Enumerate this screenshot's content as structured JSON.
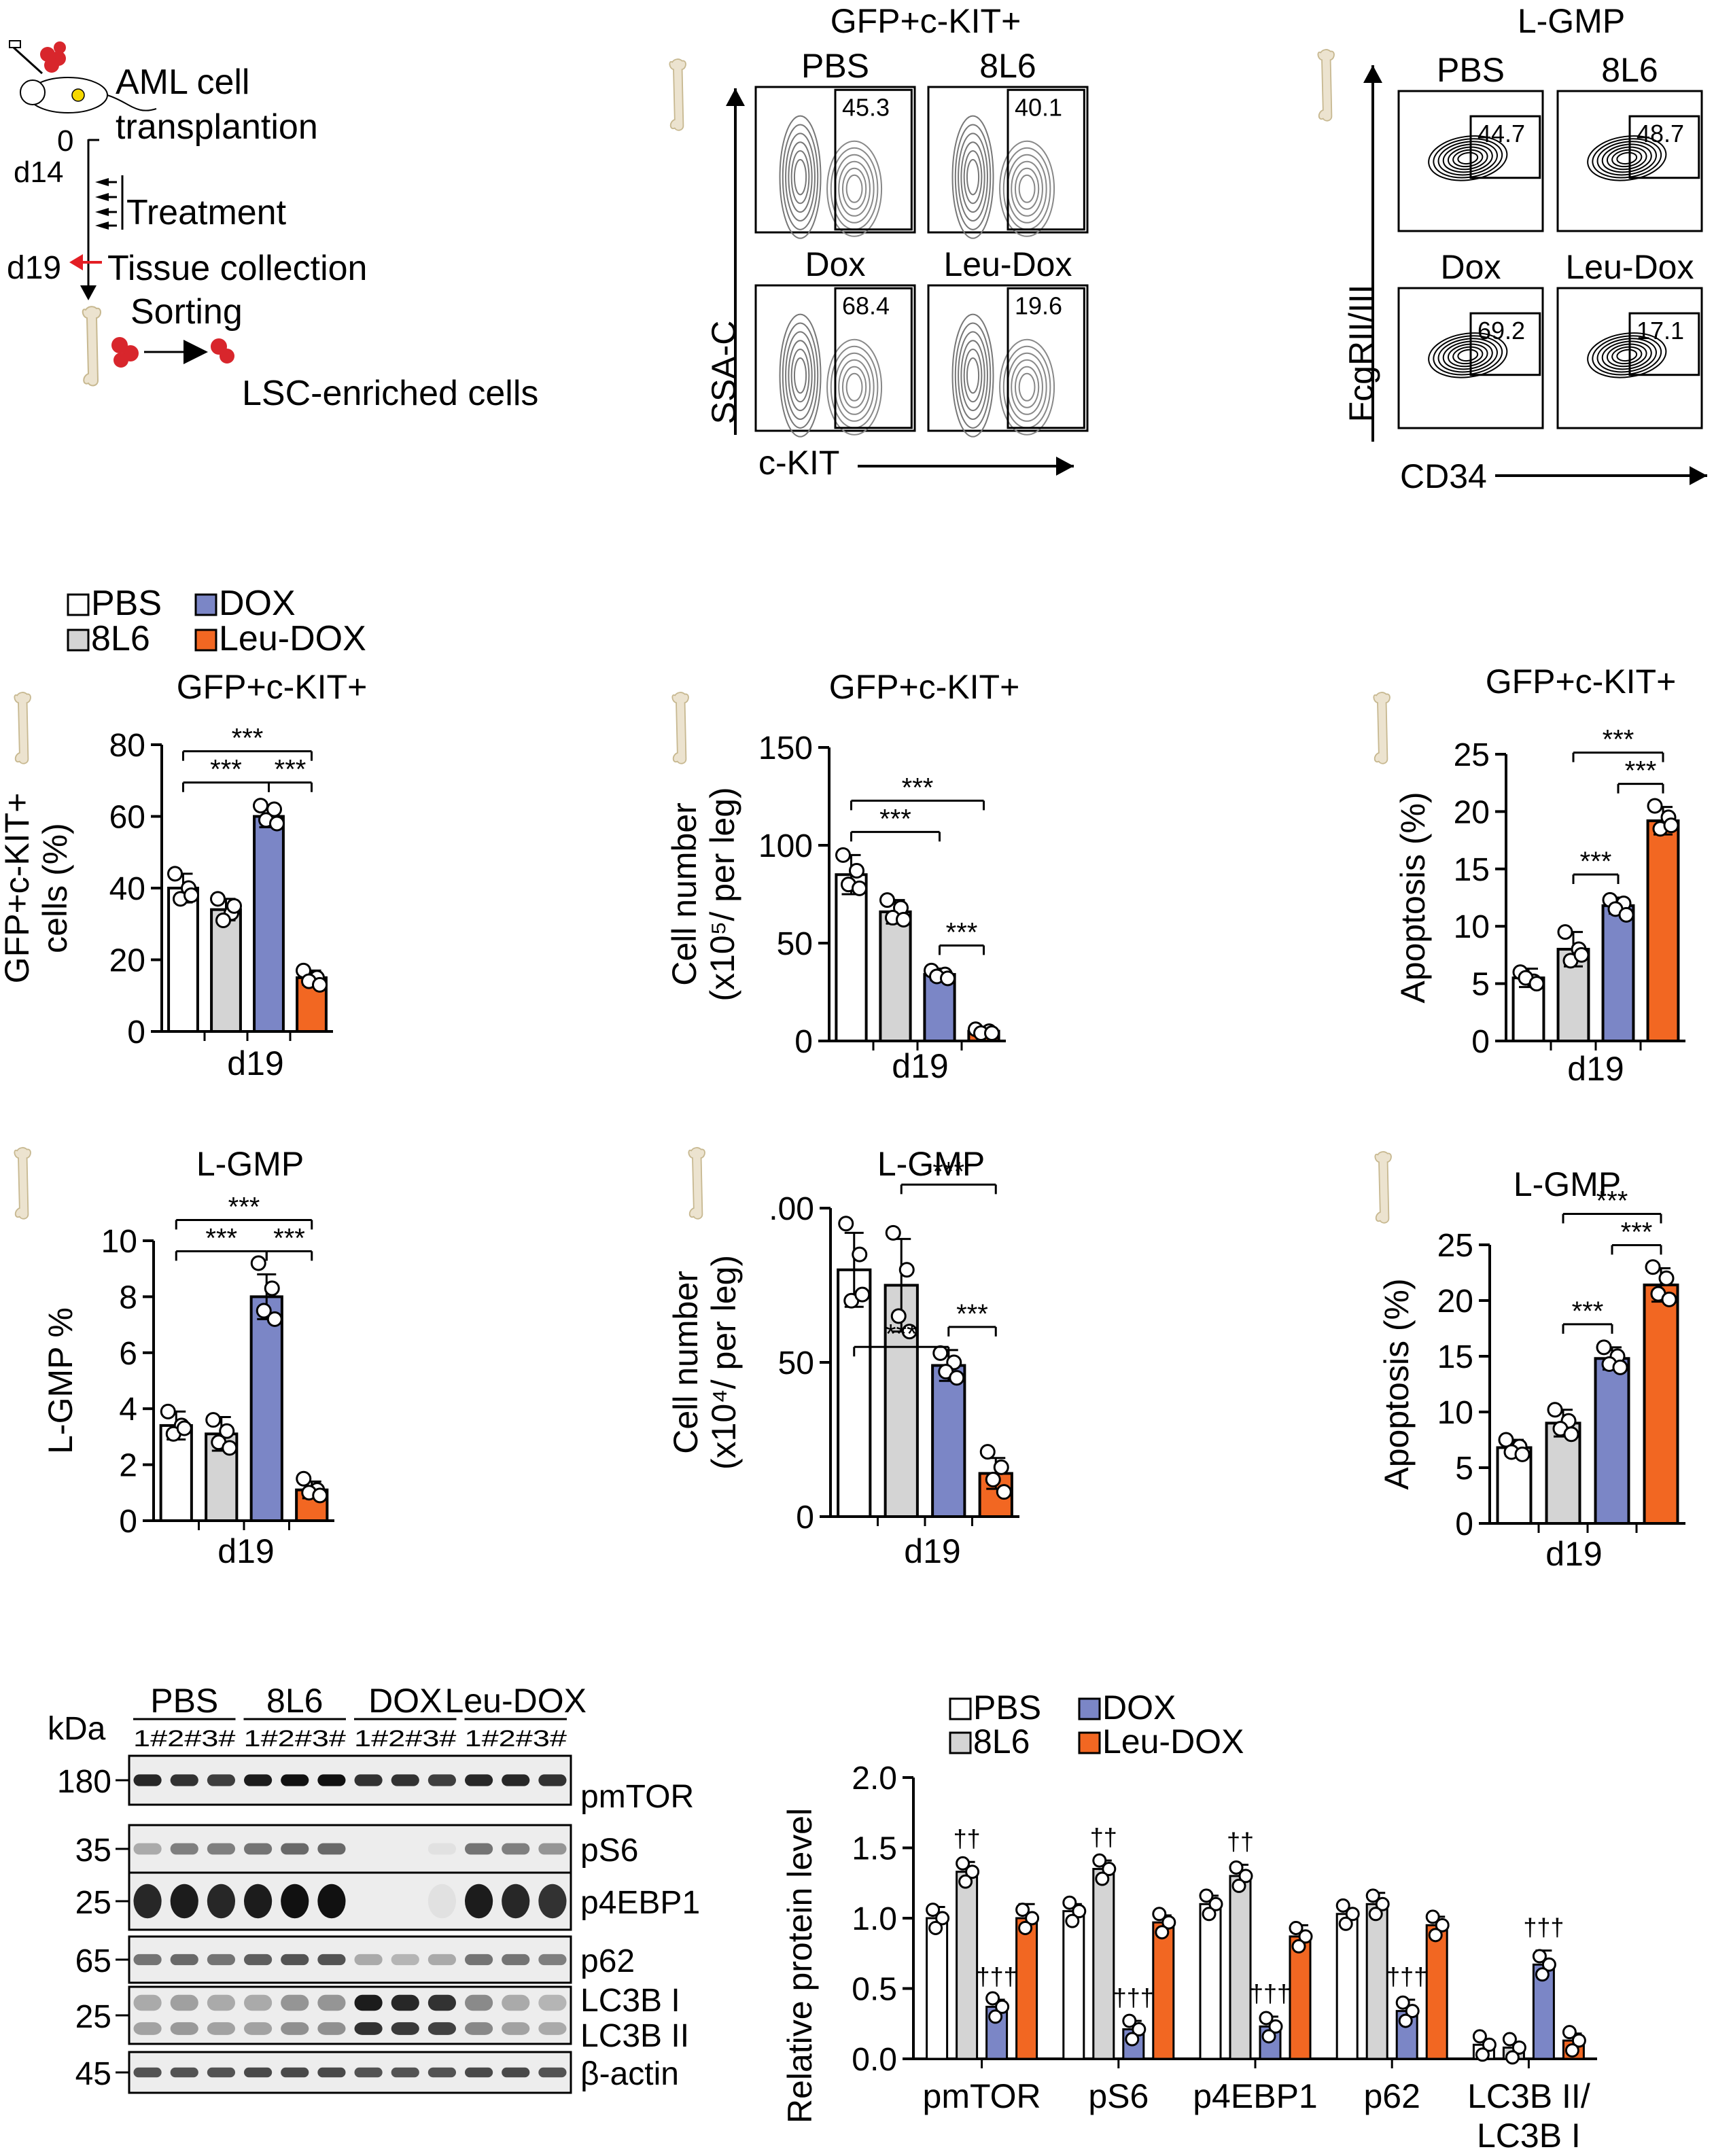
{
  "colors": {
    "PBS": "#ffffff",
    "8L6": "#d4d4d4",
    "DOX": "#7b86c6",
    "Leu-DOX": "#f26722",
    "bone": "#ece3cf",
    "bone_stroke": "#c7b890",
    "cell": "#d8262c",
    "arrow_red": "#e31e24"
  },
  "schematic": {
    "line1": "AML cell",
    "line2": "transplantion",
    "tick_0": "0",
    "tick_d14": "d14",
    "tick_d19": "d19",
    "treatment": "Treatment",
    "tissue": "Tissue collection",
    "sorting": "Sorting",
    "result": "LSC-enriched cells"
  },
  "flow_kit": {
    "title": "GFP+c-KIT+",
    "y_axis": "SSA-C",
    "x_axis": "c-KIT",
    "panels": [
      {
        "label": "PBS",
        "value": "45.3"
      },
      {
        "label": "8L6",
        "value": "40.1"
      },
      {
        "label": "Dox",
        "value": "68.4"
      },
      {
        "label": "Leu-Dox",
        "value": "19.6"
      }
    ]
  },
  "flow_gmp": {
    "title": "L-GMP",
    "y_axis": "FcgRII/III",
    "x_axis": "CD34",
    "panels": [
      {
        "label": "PBS",
        "value": "44.7"
      },
      {
        "label": "8L6",
        "value": "48.7"
      },
      {
        "label": "Dox",
        "value": "69.2"
      },
      {
        "label": "Leu-Dox",
        "value": "17.1"
      }
    ]
  },
  "legend_top": [
    "PBS",
    "DOX",
    "8L6",
    "Leu-DOX"
  ],
  "legend_bottom": [
    "PBS",
    "DOX",
    "8L6",
    "Leu-DOX"
  ],
  "chart_data": [
    {
      "id": "c1",
      "type": "bar",
      "title": "GFP+c-KIT+",
      "xlabel": "d19",
      "ylabel": [
        "GFP+c-KIT+",
        "cells (%)"
      ],
      "ylim": [
        0,
        80
      ],
      "yticks": [
        "0",
        "20",
        "40",
        "60",
        "80"
      ],
      "categories": [
        "PBS",
        "8L6",
        "DOX",
        "Leu-DOX"
      ],
      "values": [
        40,
        34,
        60,
        15
      ],
      "errors": [
        4,
        3,
        3,
        2
      ],
      "points": [
        [
          44,
          40,
          37,
          38
        ],
        [
          37,
          33,
          31,
          35
        ],
        [
          63,
          62,
          59,
          58
        ],
        [
          17,
          15,
          14,
          13
        ]
      ],
      "sig": [
        {
          "a": 0,
          "b": 2,
          "label": "***"
        },
        {
          "a": 2,
          "b": 3,
          "label": "***"
        },
        {
          "a": 0,
          "b": 3,
          "label": "***"
        }
      ]
    },
    {
      "id": "c2",
      "type": "bar",
      "title": "GFP+c-KIT+",
      "xlabel": "d19",
      "ylabel": [
        "Cell number",
        "(x10⁵/ per leg)"
      ],
      "ylim": [
        0,
        150
      ],
      "yticks": [
        "0",
        "50",
        "100",
        "150"
      ],
      "categories": [
        "PBS",
        "8L6",
        "DOX",
        "Leu-DOX"
      ],
      "values": [
        85,
        66,
        34,
        5
      ],
      "errors": [
        10,
        6,
        3,
        1
      ],
      "points": [
        [
          95,
          87,
          80,
          78
        ],
        [
          72,
          68,
          63,
          62
        ],
        [
          36,
          34,
          33,
          32
        ],
        [
          6,
          5,
          4,
          4
        ]
      ],
      "sig": [
        {
          "a": 0,
          "b": 2,
          "label": "***"
        },
        {
          "a": 2,
          "b": 3,
          "label": "***"
        },
        {
          "a": 0,
          "b": 3,
          "label": "***"
        }
      ]
    },
    {
      "id": "c3",
      "type": "bar",
      "title": "GFP+c-KIT+",
      "xlabel": "d19",
      "ylabel": [
        "Apoptosis (%)"
      ],
      "ylim": [
        0,
        25
      ],
      "yticks": [
        "0",
        "5",
        "10",
        "15",
        "20",
        "25"
      ],
      "categories": [
        "PBS",
        "8L6",
        "DOX",
        "Leu-DOX"
      ],
      "values": [
        5.5,
        8,
        11.8,
        19.2
      ],
      "errors": [
        0.8,
        1.5,
        0.7,
        1.2
      ],
      "points": [
        [
          6,
          5.2,
          5.5,
          5
        ],
        [
          9.5,
          8,
          7,
          7.5
        ],
        [
          12.3,
          12,
          11.5,
          11
        ],
        [
          20.5,
          19.5,
          18.5,
          18.8
        ]
      ],
      "sig": [
        {
          "a": 1,
          "b": 2,
          "label": "***"
        },
        {
          "a": 2,
          "b": 3,
          "label": "***"
        },
        {
          "a": 1,
          "b": 3,
          "label": "***"
        }
      ]
    },
    {
      "id": "c4",
      "type": "bar",
      "title": "L-GMP",
      "xlabel": "d19",
      "ylabel": [
        "L-GMP %"
      ],
      "ylim": [
        0,
        10
      ],
      "yticks": [
        "0",
        "2",
        "4",
        "6",
        "8",
        "10"
      ],
      "categories": [
        "PBS",
        "8L6",
        "DOX",
        "Leu-DOX"
      ],
      "values": [
        3.4,
        3.1,
        8,
        1.1
      ],
      "errors": [
        0.5,
        0.6,
        0.8,
        0.3
      ],
      "points": [
        [
          3.9,
          3.4,
          3.1,
          3.3
        ],
        [
          3.6,
          3.2,
          2.8,
          2.6
        ],
        [
          9.2,
          8.3,
          7.5,
          7.2
        ],
        [
          1.5,
          1.1,
          1.0,
          0.9
        ]
      ],
      "sig": [
        {
          "a": 0,
          "b": 2,
          "label": "***"
        },
        {
          "a": 2,
          "b": 3,
          "label": "***"
        },
        {
          "a": 0,
          "b": 3,
          "label": "***"
        }
      ]
    },
    {
      "id": "c5",
      "type": "bar",
      "title": "L-GMP",
      "xlabel": "d19",
      "ylabel": [
        "Cell number",
        "(x10⁴/ per leg)"
      ],
      "ylim": [
        0,
        100
      ],
      "yticks": [
        "0",
        "50",
        ".00"
      ],
      "categories": [
        "PBS",
        "8L6",
        "DOX",
        "Leu-DOX"
      ],
      "values": [
        80,
        75,
        49,
        14
      ],
      "errors": [
        12,
        15,
        5,
        5
      ],
      "points": [
        [
          95,
          85,
          70,
          72
        ],
        [
          92,
          80,
          65,
          60
        ],
        [
          53,
          50,
          47,
          45
        ],
        [
          21,
          16,
          12,
          8
        ]
      ],
      "sig": [
        {
          "a": 0,
          "b": 2,
          "label": "***",
          "below": true
        },
        {
          "a": 2,
          "b": 3,
          "label": "***"
        },
        {
          "a": 1,
          "b": 3,
          "label": "***"
        }
      ]
    },
    {
      "id": "c6",
      "type": "bar",
      "title": "L-GMP",
      "xlabel": "d19",
      "ylabel": [
        "Apoptosis (%)"
      ],
      "ylim": [
        0,
        25
      ],
      "yticks": [
        "0",
        "5",
        "10",
        "15",
        "20",
        "25"
      ],
      "categories": [
        "PBS",
        "8L6",
        "DOX",
        "Leu-DOX"
      ],
      "values": [
        6.8,
        9,
        14.8,
        21.4
      ],
      "errors": [
        0.7,
        1.2,
        1.0,
        1.5
      ],
      "points": [
        [
          7.5,
          6.9,
          6.4,
          6.2
        ],
        [
          10.2,
          9.2,
          8.5,
          8
        ],
        [
          15.8,
          15,
          14.3,
          14
        ],
        [
          23,
          22,
          20.6,
          20.1
        ]
      ],
      "sig": [
        {
          "a": 1,
          "b": 2,
          "label": "***"
        },
        {
          "a": 2,
          "b": 3,
          "label": "***"
        },
        {
          "a": 1,
          "b": 3,
          "label": "***"
        }
      ]
    },
    {
      "id": "c7",
      "type": "bar",
      "title": "",
      "xlabel": "",
      "ylabel": [
        "Relative protein level"
      ],
      "ylim": [
        0,
        2.0
      ],
      "yticks": [
        "0.0",
        "0.5",
        "1.0",
        "1.5",
        "2.0"
      ],
      "categories": [
        "pmTOR",
        "pS6",
        "p4EBP1",
        "p62",
        "LC3B II/\nLC3B I"
      ],
      "series": [
        {
          "name": "PBS",
          "values": [
            1.0,
            1.05,
            1.1,
            1.03,
            0.1
          ],
          "errors": [
            0.08,
            0.05,
            0.06,
            0.04,
            0.03
          ]
        },
        {
          "name": "8L6",
          "values": [
            1.33,
            1.35,
            1.3,
            1.1,
            0.08
          ],
          "errors": [
            0.07,
            0.06,
            0.08,
            0.08,
            0.03
          ]
        },
        {
          "name": "DOX",
          "values": [
            0.37,
            0.21,
            0.23,
            0.34,
            0.67
          ],
          "errors": [
            0.05,
            0.06,
            0.07,
            0.08,
            0.1
          ]
        },
        {
          "name": "Leu-DOX",
          "values": [
            1.0,
            0.97,
            0.87,
            0.95,
            0.13
          ],
          "errors": [
            0.1,
            0.05,
            0.08,
            0.06,
            0.05
          ]
        }
      ],
      "annotations": [
        {
          "cat": 0,
          "series": 1,
          "label": "††"
        },
        {
          "cat": 0,
          "series": 2,
          "label": "†††"
        },
        {
          "cat": 1,
          "series": 1,
          "label": "††"
        },
        {
          "cat": 1,
          "series": 2,
          "label": "†††"
        },
        {
          "cat": 2,
          "series": 1,
          "label": "††"
        },
        {
          "cat": 2,
          "series": 2,
          "label": "†††"
        },
        {
          "cat": 3,
          "series": 2,
          "label": "†††"
        },
        {
          "cat": 4,
          "series": 2,
          "label": "†††"
        }
      ]
    }
  ],
  "western": {
    "groups": [
      "PBS",
      "8L6",
      "DOX",
      "Leu-DOX"
    ],
    "lanes": "1#2#3#",
    "kda_label": "kDa",
    "rows": [
      {
        "kda": "180",
        "name": "pmTOR"
      },
      {
        "kda": "35",
        "name": "pS6"
      },
      {
        "kda": "25",
        "name": "p4EBP1"
      },
      {
        "kda": "65",
        "name": "p62"
      },
      {
        "kda": "25",
        "name": "LC3B I",
        "name2": "LC3B II"
      },
      {
        "kda": "45",
        "name": "β-actin"
      }
    ]
  }
}
